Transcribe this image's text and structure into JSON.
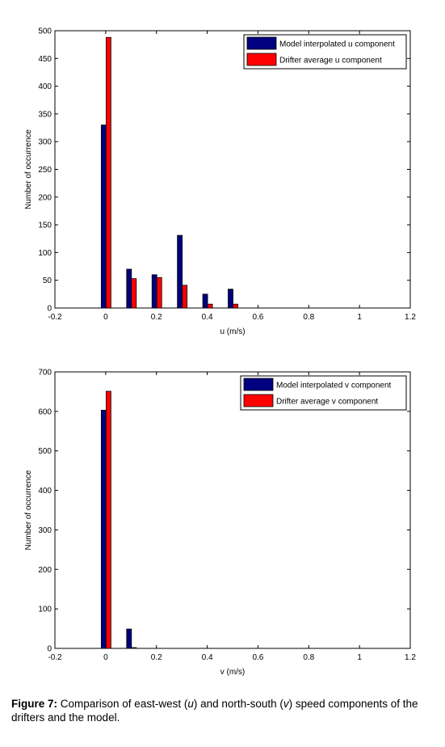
{
  "chart_data": [
    {
      "type": "bar",
      "xlabel": "u (m/s)",
      "ylabel": "Number of occurrence",
      "xlim": [
        -0.2,
        1.2
      ],
      "ylim": [
        0,
        500
      ],
      "xticks": [
        -0.2,
        0,
        0.2,
        0.4,
        0.6,
        0.8,
        1,
        1.2
      ],
      "xtick_labels": [
        "-0.2",
        "0",
        "0.2",
        "0.4",
        "0.6",
        "0.8",
        "1",
        "1.2"
      ],
      "yticks": [
        0,
        50,
        100,
        150,
        200,
        250,
        300,
        350,
        400,
        450,
        500
      ],
      "legend_position": "top-right",
      "grid": false,
      "categories": [
        0,
        0.1,
        0.2,
        0.3,
        0.4,
        0.5
      ],
      "series": [
        {
          "name": "Model interpolated u component",
          "color": "#000080",
          "values": [
            330,
            70,
            60,
            131,
            25,
            34
          ]
        },
        {
          "name": "Drifter average u component",
          "color": "#ff0000",
          "values": [
            488,
            53,
            55,
            41,
            7,
            7
          ]
        }
      ]
    },
    {
      "type": "bar",
      "xlabel": "v (m/s)",
      "ylabel": "Number of occurrence",
      "xlim": [
        -0.2,
        1.2
      ],
      "ylim": [
        0,
        700
      ],
      "xticks": [
        -0.2,
        0,
        0.2,
        0.4,
        0.6,
        0.8,
        1,
        1.2
      ],
      "xtick_labels": [
        "-0.2",
        "0",
        "0.2",
        "0.4",
        "0.6",
        "0.8",
        "1",
        "1.2"
      ],
      "yticks": [
        0,
        100,
        200,
        300,
        400,
        500,
        600,
        700
      ],
      "legend_position": "top-right",
      "grid": false,
      "categories": [
        0,
        0.1
      ],
      "series": [
        {
          "name": "Model interpolated v component",
          "color": "#000080",
          "values": [
            603,
            49
          ]
        },
        {
          "name": "Drifter average v component",
          "color": "#ff0000",
          "values": [
            651,
            2
          ]
        }
      ]
    }
  ],
  "caption": {
    "label": "Figure 7:",
    "text_1": " Comparison of east-west (",
    "var_u": "u",
    "text_2": ") and north-south (",
    "var_v": "v",
    "text_3": ") speed components of the drifters and the model."
  }
}
